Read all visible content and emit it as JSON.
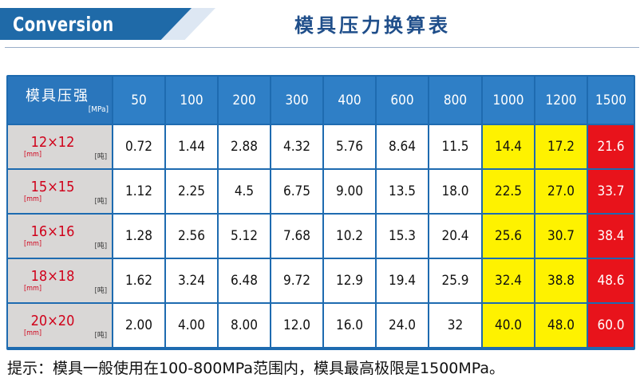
{
  "header": {
    "badge": "Conversion",
    "title": "模具压力换算表"
  },
  "table": {
    "corner_label": "模具压强",
    "corner_unit": "[MPa]",
    "pressures": [
      "50",
      "100",
      "200",
      "300",
      "400",
      "600",
      "800",
      "1000",
      "1200",
      "1500"
    ],
    "size_unit": "[mm]",
    "ton_unit": "[吨]",
    "rows": [
      {
        "size": "12×12",
        "values": [
          "0.72",
          "1.44",
          "2.88",
          "4.32",
          "5.76",
          "8.64",
          "11.5",
          "14.4",
          "17.2",
          "21.6"
        ]
      },
      {
        "size": "15×15",
        "values": [
          "1.12",
          "2.25",
          "4.5",
          "6.75",
          "9.00",
          "13.5",
          "18.0",
          "22.5",
          "27.0",
          "33.7"
        ]
      },
      {
        "size": "16×16",
        "values": [
          "1.28",
          "2.56",
          "5.12",
          "7.68",
          "10.2",
          "15.3",
          "20.4",
          "25.6",
          "30.7",
          "38.4"
        ]
      },
      {
        "size": "18×18",
        "values": [
          "1.62",
          "3.24",
          "6.48",
          "9.72",
          "12.9",
          "19.4",
          "25.9",
          "32.4",
          "38.8",
          "48.6"
        ]
      },
      {
        "size": "20×20",
        "values": [
          "2.00",
          "4.00",
          "8.00",
          "12.0",
          "16.0",
          "24.0",
          "32",
          "40.0",
          "48.0",
          "60.0"
        ]
      }
    ],
    "colors": {
      "header": "#2f7fc6",
      "highlight_yellow": "#fef200",
      "highlight_red": "#e8131b"
    }
  },
  "note": "提示：模具一般使用在100-800MPa范围内，模具最高极限是1500MPa。"
}
